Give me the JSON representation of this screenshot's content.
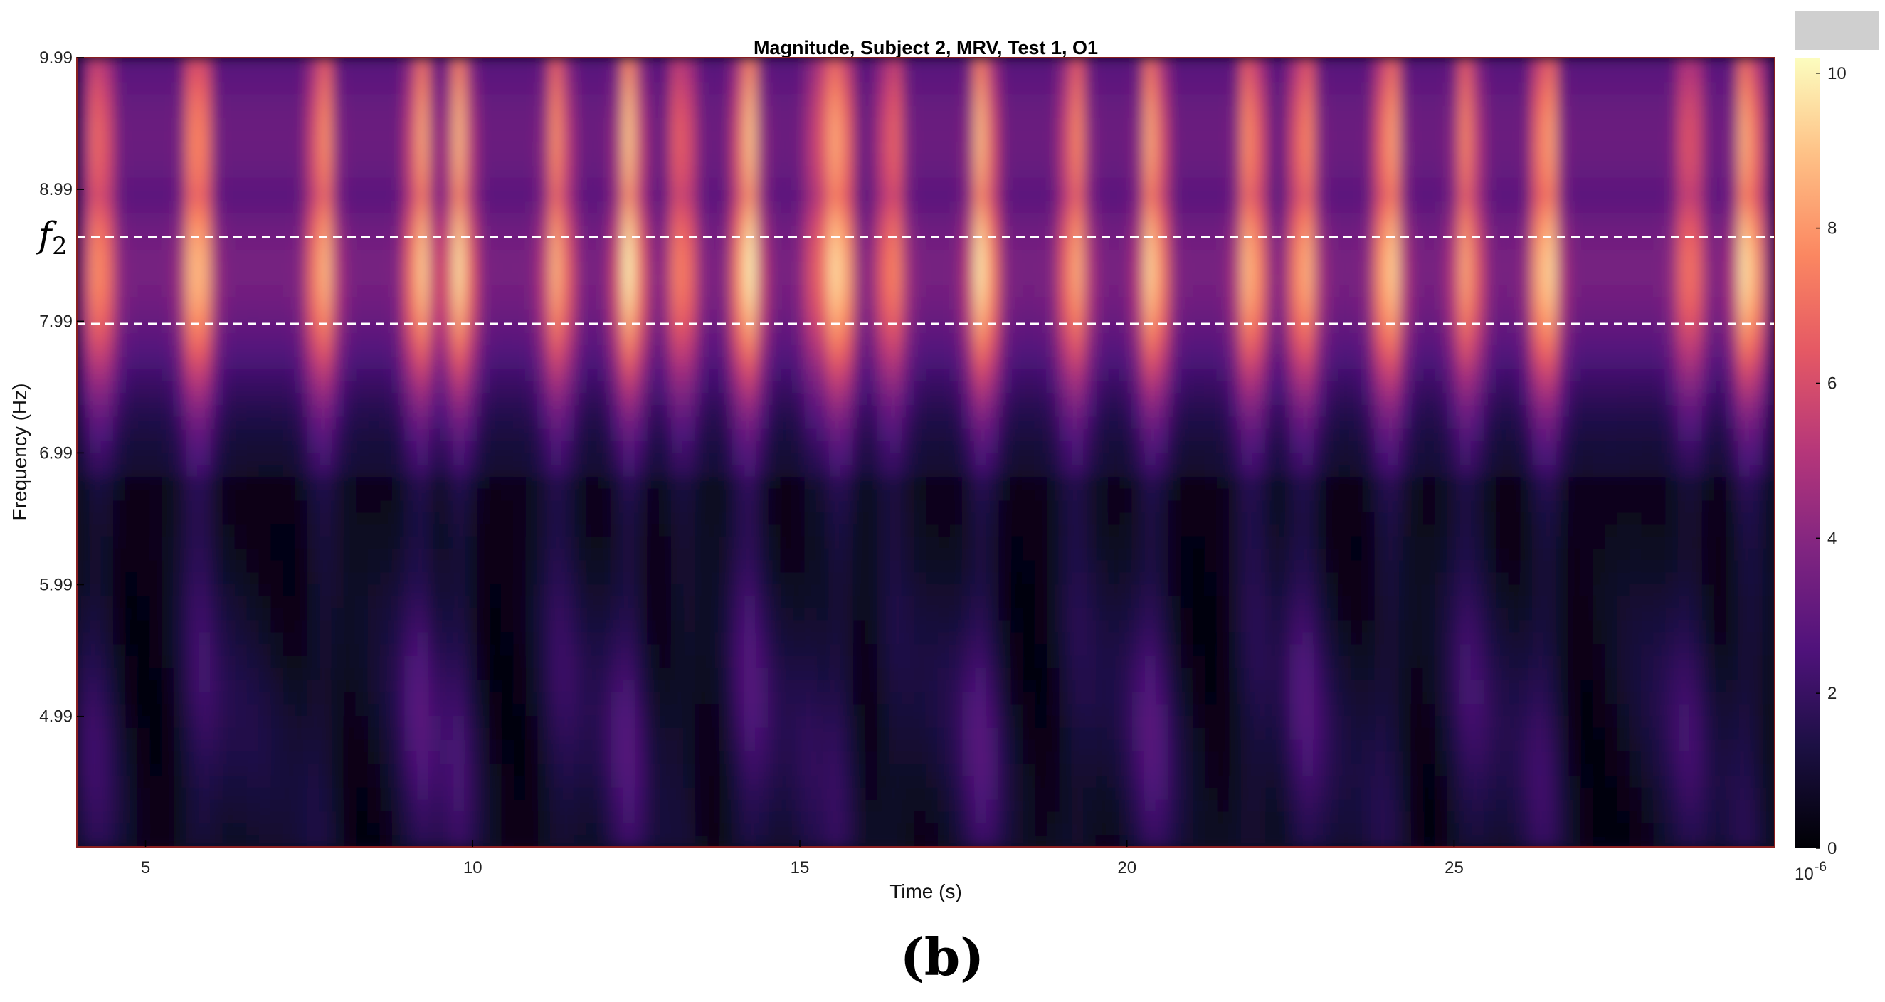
{
  "panel_label": "(b)",
  "chart_data": {
    "type": "heatmap",
    "title": "Magnitude, Subject 2, MRV, Test 1, O1",
    "xlabel": "Time (s)",
    "ylabel": "Frequency (Hz)",
    "xlim": [
      3.95,
      29.9
    ],
    "ylim": [
      4.0,
      9.99
    ],
    "x_ticks": [
      5,
      10,
      15,
      20,
      25
    ],
    "x_tick_labels": [
      "5",
      "10",
      "15",
      "20",
      "25"
    ],
    "y_ticks": [
      4.99,
      5.99,
      6.99,
      7.99,
      8.99,
      9.99
    ],
    "y_tick_labels": [
      "4.99",
      "5.99",
      "6.99",
      "7.99",
      "8.99",
      "9.99"
    ],
    "colormap": "magma",
    "colorbar": {
      "range": [
        0,
        10.2
      ],
      "ticks": [
        0,
        2,
        4,
        6,
        8,
        10
      ],
      "tick_labels": [
        "0",
        "2",
        "4",
        "6",
        "8",
        "10"
      ],
      "multiplier": "10",
      "multiplier_exponent": "-6"
    },
    "reference_lines": [
      {
        "frequency": 8.63,
        "style": "dashed",
        "color": "#ffffff"
      },
      {
        "frequency": 7.97,
        "style": "dashed",
        "color": "#ffffff"
      }
    ],
    "marker_label": {
      "main": "f",
      "sub": "2",
      "frequency": 8.63
    },
    "magnitude_band": {
      "center_frequency": 8.4,
      "peak_value": 10.2
    },
    "vertical_streak_times": [
      4.3,
      5.8,
      7.7,
      9.2,
      9.8,
      11.3,
      12.4,
      13.2,
      14.2,
      15.3,
      15.6,
      16.4,
      17.8,
      19.2,
      20.4,
      21.9,
      22.7,
      24.0,
      25.2,
      26.4,
      28.6,
      29.5
    ]
  },
  "colors": {
    "frame": "#8a1f1f",
    "dashed_line": "#ffffff",
    "background": "#ffffff",
    "top_right_box": "#cfcfcf"
  }
}
